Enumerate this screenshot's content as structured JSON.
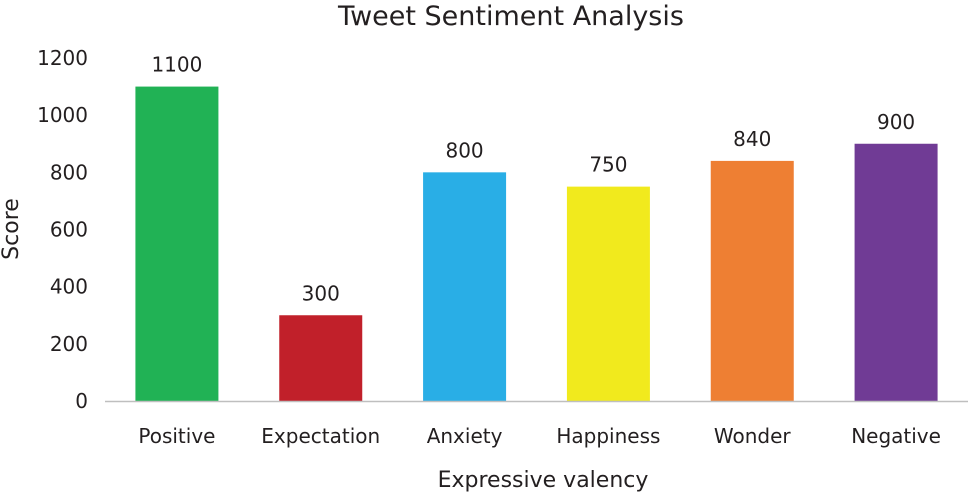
{
  "chart_data": {
    "type": "bar",
    "title": "Tweet Sentiment Analysis",
    "xlabel": "Expressive valency",
    "ylabel": "Score",
    "categories": [
      "Positive",
      "Expectation",
      "Anxiety",
      "Happiness",
      "Wonder",
      "Negative"
    ],
    "values": [
      1100,
      300,
      800,
      750,
      840,
      900
    ],
    "data_labels": [
      "1100",
      "300",
      "800",
      "750",
      "840",
      "900"
    ],
    "colors": [
      "#21b255",
      "#c1202a",
      "#29aee6",
      "#f1ea1d",
      "#ee7f33",
      "#703b95"
    ],
    "ylim": [
      0,
      1200
    ],
    "yticks": [
      0,
      200,
      400,
      600,
      800,
      1000,
      1200
    ],
    "grid": false,
    "legend": "none"
  }
}
